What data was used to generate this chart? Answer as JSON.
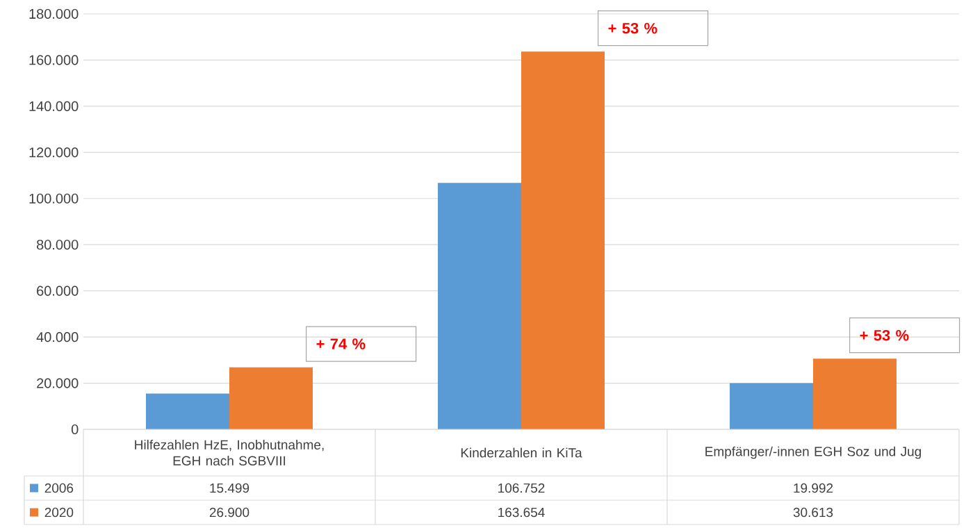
{
  "chart_data": {
    "type": "bar",
    "categories": [
      "Hilfezahlen HzE, Inobhutnahme, EGH nach SGBVIII",
      "Kinderzahlen in KiTa",
      "Empfänger/-innen EGH Soz und Jug"
    ],
    "series": [
      {
        "name": "2006",
        "color": "#5b9bd5",
        "values": [
          15499,
          106752,
          19992
        ],
        "value_labels": [
          "15.499",
          "106.752",
          "19.992"
        ]
      },
      {
        "name": "2020",
        "color": "#ed7d31",
        "values": [
          26900,
          163654,
          30613
        ],
        "value_labels": [
          "26.900",
          "163.654",
          "30.613"
        ]
      }
    ],
    "ylim": [
      0,
      180000
    ],
    "yticks": [
      0,
      {
        "value": 20000,
        "label": "20.000"
      },
      {
        "value": 40000,
        "label": "40.000"
      },
      {
        "value": 60000,
        "label": "60.000"
      },
      {
        "value": 80000,
        "label": "80.000"
      },
      {
        "value": 100000,
        "label": "100.000"
      },
      {
        "value": 120000,
        "label": "120.000"
      },
      {
        "value": 140000,
        "label": "140.000"
      },
      {
        "value": 160000,
        "label": "160.000"
      },
      {
        "value": 180000,
        "label": "180.000"
      }
    ],
    "grid": "y",
    "legend": "bottom",
    "annotations": [
      "+ 74 %",
      "+ 53 %",
      "+ 53 %"
    ]
  }
}
